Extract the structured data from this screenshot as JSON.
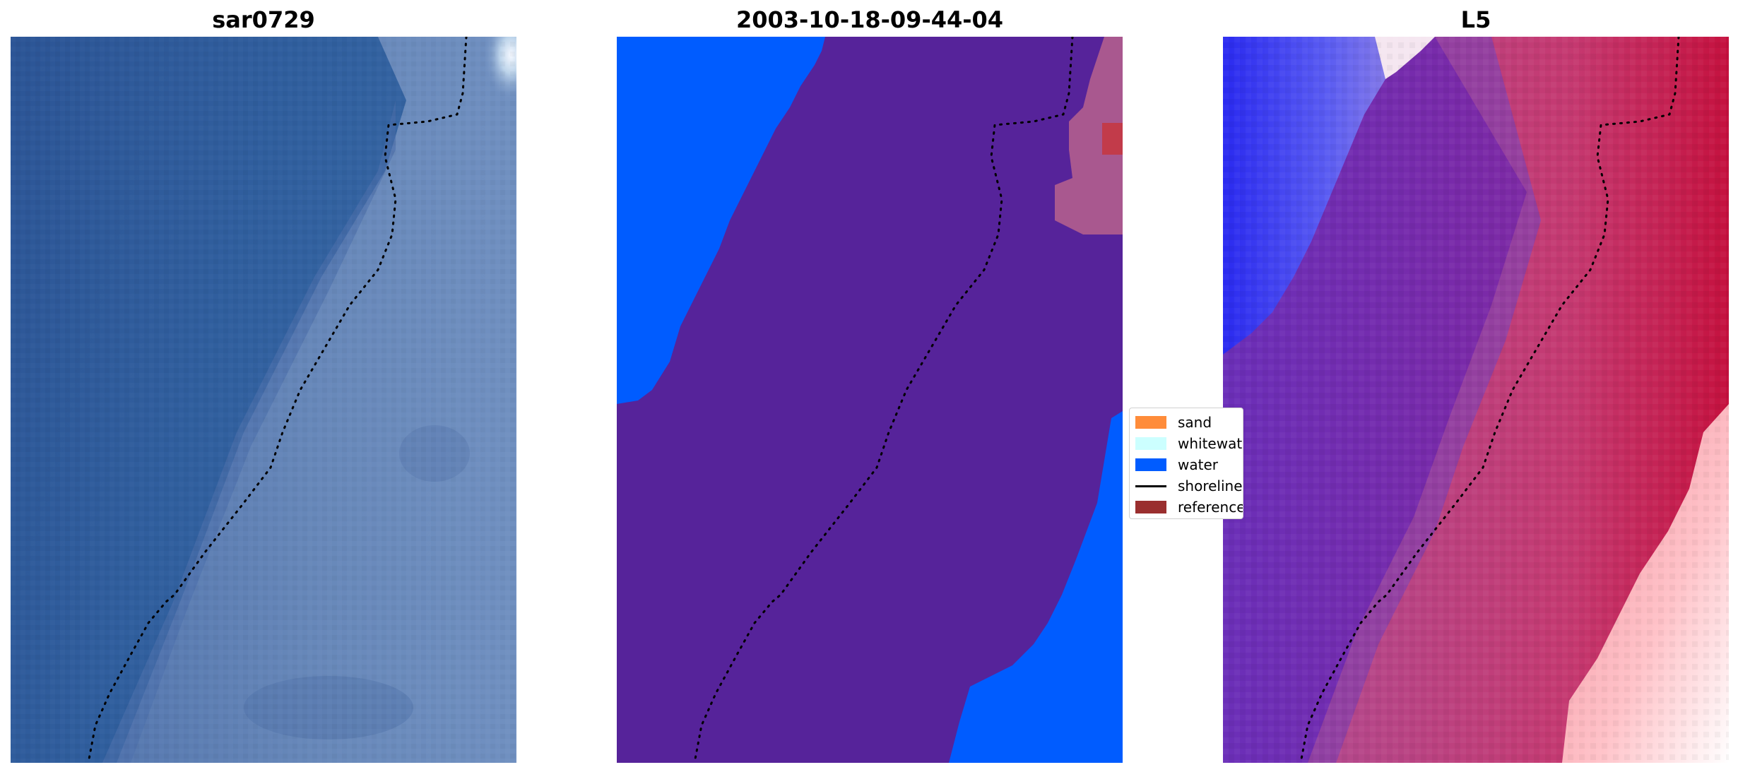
{
  "panels": [
    {
      "title": "sar0729"
    },
    {
      "title": "2003-10-18-09-44-04"
    },
    {
      "title": "L5"
    }
  ],
  "legend": {
    "items": [
      {
        "label": "sand",
        "color": "#ff8c3a",
        "kind": "patch"
      },
      {
        "label": "whitewater",
        "color": "#ccffff",
        "kind": "patch"
      },
      {
        "label": "water",
        "color": "#005cff",
        "kind": "patch"
      },
      {
        "label": "shoreline",
        "color": "#000000",
        "kind": "line"
      },
      {
        "label": "reference",
        "color": "#9a2f2f",
        "kind": "patch"
      }
    ]
  },
  "colors": {
    "class_water": "#005cff",
    "class_land": "#56239a",
    "ocean_rgb": "#2f5b9a",
    "shore_dots": "#000000"
  }
}
